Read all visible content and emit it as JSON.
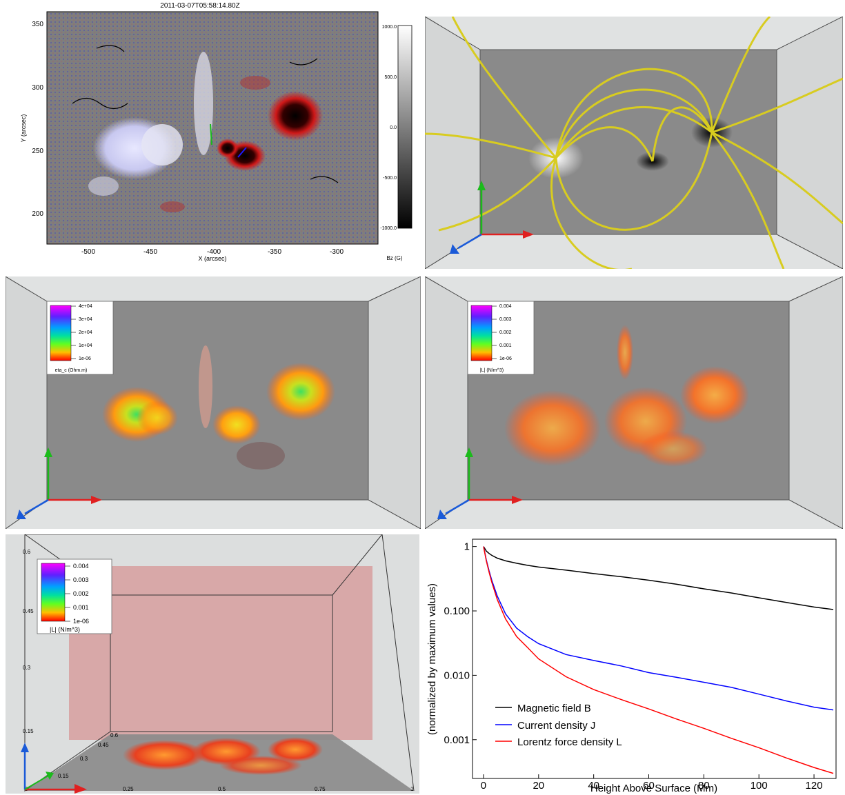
{
  "magnetogram": {
    "title": "2011-03-07T05:58:14.80Z",
    "xlabel": "X (arcsec)",
    "ylabel": "Y (arcsec)",
    "xticks": [
      "-500",
      "-450",
      "-400",
      "-350",
      "-300"
    ],
    "yticks": [
      "350",
      "300",
      "250",
      "200"
    ],
    "colorbar_ticks": [
      "1000.0",
      "500.0",
      "0.0",
      "-500.0",
      "-1000.0"
    ],
    "colorbar_label": "Bz (G)"
  },
  "eta_panel": {
    "legend_ticks": [
      "4e+04",
      "3e+04",
      "2e+04",
      "1e+04",
      "1e-06"
    ],
    "legend_label": "eta_c (Ohm.m)"
  },
  "lorentz_panel": {
    "legend_ticks": [
      "0.004",
      "0.003",
      "0.002",
      "0.001",
      "1e-06"
    ],
    "legend_label": "|L| (N/m^3)"
  },
  "volume_panel": {
    "legend_ticks": [
      "0.004",
      "0.003",
      "0.002",
      "0.001",
      "1e-06"
    ],
    "legend_label": "|L| (N/m^3)",
    "z_ticks": [
      "0.6",
      "0.45",
      "0.3",
      "0.15"
    ],
    "x_ticks": [
      "0",
      "0.25",
      "0.5",
      "0.75",
      "1"
    ],
    "y_ticks": [
      "0.6",
      "0.45",
      "0.3",
      "0.15"
    ]
  },
  "chart_data": {
    "type": "line",
    "xlabel": "Height Above Surface (Mm)",
    "ylabel": "(normalized by maximum values)",
    "xlim": [
      -4,
      128
    ],
    "ylim": [
      0.00025,
      1.3
    ],
    "yscale": "log",
    "xticks": [
      "0",
      "20",
      "40",
      "60",
      "80",
      "100",
      "120"
    ],
    "yticks": [
      {
        "value": 1,
        "label": "1"
      },
      {
        "value": 0.1,
        "label": "0.100"
      },
      {
        "value": 0.01,
        "label": "0.010"
      },
      {
        "value": 0.001,
        "label": "0.001"
      }
    ],
    "legend_position": "bottom-left",
    "x": [
      0,
      1,
      2,
      3,
      5,
      8,
      12,
      16,
      20,
      30,
      40,
      50,
      60,
      70,
      80,
      90,
      100,
      110,
      120,
      127
    ],
    "series": [
      {
        "name": "Magnetic field B",
        "color": "#000000",
        "values": [
          1.0,
          0.85,
          0.78,
          0.73,
          0.66,
          0.6,
          0.55,
          0.51,
          0.48,
          0.43,
          0.38,
          0.34,
          0.3,
          0.26,
          0.22,
          0.19,
          0.16,
          0.135,
          0.115,
          0.105
        ]
      },
      {
        "name": "Current density J",
        "color": "#0000ff",
        "values": [
          1.0,
          0.62,
          0.42,
          0.3,
          0.17,
          0.09,
          0.054,
          0.04,
          0.031,
          0.021,
          0.017,
          0.014,
          0.011,
          0.0093,
          0.0078,
          0.0065,
          0.0051,
          0.004,
          0.0032,
          0.0029
        ]
      },
      {
        "name": "Lorentz force density L",
        "color": "#ff0000",
        "values": [
          1.0,
          0.6,
          0.4,
          0.28,
          0.15,
          0.075,
          0.04,
          0.027,
          0.018,
          0.0095,
          0.006,
          0.0042,
          0.003,
          0.0021,
          0.0015,
          0.00105,
          0.00075,
          0.00052,
          0.00037,
          0.0003
        ]
      }
    ]
  }
}
